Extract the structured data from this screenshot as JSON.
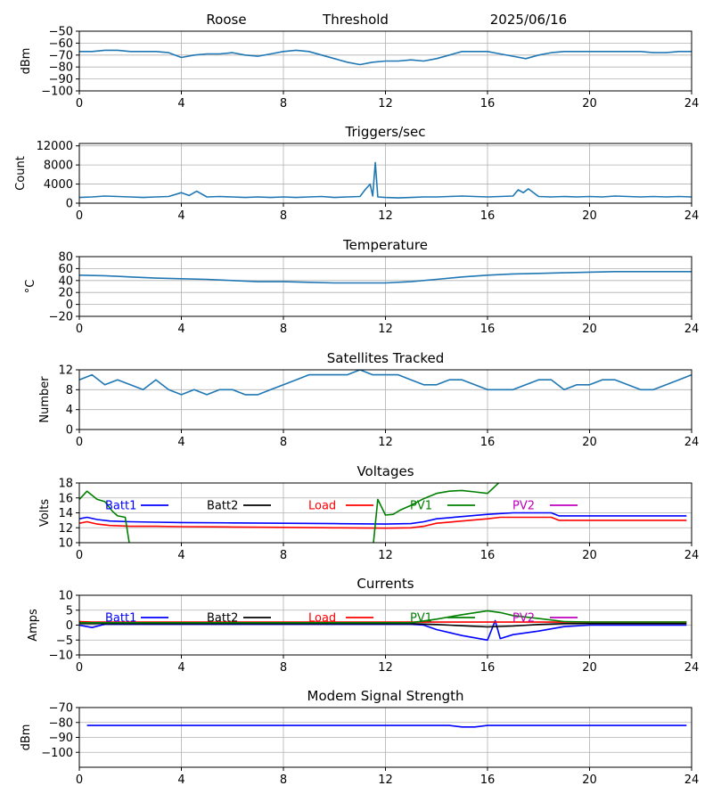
{
  "header": {
    "station": "Roose",
    "mode": "Threshold",
    "date": "2025/06/16"
  },
  "chart_data": [
    {
      "id": "signal",
      "type": "line",
      "title": "",
      "ylabel": "dBm",
      "ylim": [
        -100,
        -50
      ],
      "yticks": [
        -100,
        -90,
        -80,
        -70,
        -60,
        -50
      ],
      "xlim": [
        0,
        24
      ],
      "xticks": [
        0,
        4,
        8,
        12,
        16,
        20,
        24
      ],
      "grid": true,
      "series": [
        {
          "color": "#1f77b4",
          "x": [
            0,
            0.5,
            1,
            1.5,
            2,
            2.5,
            3,
            3.5,
            4,
            4.5,
            5,
            5.5,
            6,
            6.5,
            7,
            7.5,
            8,
            8.5,
            9,
            9.5,
            10,
            10.5,
            11,
            11.5,
            12,
            12.5,
            13,
            13.5,
            14,
            14.5,
            15,
            15.5,
            16,
            16.5,
            17,
            17.5,
            18,
            18.5,
            19,
            19.5,
            20,
            20.5,
            21,
            21.5,
            22,
            22.5,
            23,
            23.5,
            24
          ],
          "y": [
            -67,
            -67,
            -66,
            -66,
            -67,
            -67,
            -67,
            -68,
            -72,
            -70,
            -69,
            -69,
            -68,
            -70,
            -71,
            -69,
            -67,
            -66,
            -67,
            -70,
            -73,
            -76,
            -78,
            -76,
            -75,
            -75,
            -74,
            -75,
            -73,
            -70,
            -67,
            -67,
            -67,
            -69,
            -71,
            -73,
            -70,
            -68,
            -67,
            -67,
            -67,
            -67,
            -67,
            -67,
            -67,
            -68,
            -68,
            -67,
            -67
          ]
        }
      ]
    },
    {
      "id": "triggers",
      "type": "line",
      "title": "Triggers/sec",
      "ylabel": "Count",
      "ylim": [
        0,
        12500
      ],
      "yticks": [
        0,
        4000,
        8000,
        12000
      ],
      "xlim": [
        0,
        24
      ],
      "xticks": [
        0,
        4,
        8,
        12,
        16,
        20,
        24
      ],
      "grid": true,
      "series": [
        {
          "color": "#1f77b4",
          "x": [
            0,
            0.5,
            1,
            1.5,
            2,
            2.5,
            3,
            3.5,
            4,
            4.3,
            4.6,
            5,
            5.5,
            6,
            6.5,
            7,
            7.5,
            8,
            8.5,
            9,
            9.5,
            10,
            10.5,
            11,
            11.2,
            11.4,
            11.5,
            11.6,
            11.7,
            12,
            12.5,
            13,
            13.5,
            14,
            14.5,
            15,
            15.5,
            16,
            16.5,
            17,
            17.2,
            17.4,
            17.6,
            18,
            18.5,
            19,
            19.5,
            20,
            20.5,
            21,
            21.5,
            22,
            22.5,
            23,
            23.5,
            24
          ],
          "y": [
            1200,
            1300,
            1500,
            1400,
            1300,
            1200,
            1300,
            1400,
            2200,
            1600,
            2500,
            1300,
            1400,
            1300,
            1200,
            1300,
            1200,
            1300,
            1200,
            1300,
            1400,
            1200,
            1300,
            1400,
            2800,
            4000,
            1500,
            8500,
            1300,
            1200,
            1100,
            1200,
            1300,
            1300,
            1400,
            1500,
            1400,
            1300,
            1400,
            1500,
            2800,
            2200,
            3000,
            1400,
            1300,
            1400,
            1300,
            1400,
            1300,
            1500,
            1400,
            1300,
            1400,
            1300,
            1400,
            1300
          ]
        }
      ]
    },
    {
      "id": "temperature",
      "type": "line",
      "title": "Temperature",
      "ylabel": "°C",
      "ylim": [
        -20,
        80
      ],
      "yticks": [
        -20,
        0,
        20,
        40,
        60,
        80
      ],
      "xlim": [
        0,
        24
      ],
      "xticks": [
        0,
        4,
        8,
        12,
        16,
        20,
        24
      ],
      "grid": true,
      "series": [
        {
          "color": "#1f77b4",
          "x": [
            0,
            1,
            2,
            3,
            4,
            5,
            6,
            7,
            8,
            9,
            10,
            11,
            12,
            13,
            14,
            15,
            16,
            17,
            18,
            19,
            20,
            21,
            22,
            23,
            24
          ],
          "y": [
            49,
            48,
            46,
            44,
            43,
            42,
            40,
            38,
            38,
            37,
            36,
            36,
            36,
            38,
            42,
            46,
            49,
            51,
            52,
            53,
            54,
            55,
            55,
            55,
            55
          ]
        }
      ]
    },
    {
      "id": "satellites",
      "type": "line",
      "title": "Satellites Tracked",
      "ylabel": "Number",
      "ylim": [
        0,
        12
      ],
      "yticks": [
        0,
        4,
        8,
        12
      ],
      "xlim": [
        0,
        24
      ],
      "xticks": [
        0,
        4,
        8,
        12,
        16,
        20,
        24
      ],
      "grid": true,
      "series": [
        {
          "color": "#1f77b4",
          "x": [
            0,
            0.5,
            1,
            1.5,
            2,
            2.5,
            3,
            3.5,
            4,
            4.5,
            5,
            5.5,
            6,
            6.5,
            7,
            7.5,
            8,
            8.5,
            9,
            9.5,
            10,
            10.5,
            11,
            11.5,
            12,
            12.5,
            13,
            13.5,
            14,
            14.5,
            15,
            15.5,
            16,
            16.5,
            17,
            17.5,
            18,
            18.5,
            19,
            19.5,
            20,
            20.5,
            21,
            21.5,
            22,
            22.5,
            23,
            23.5,
            24
          ],
          "y": [
            10,
            11,
            9,
            10,
            9,
            8,
            10,
            8,
            7,
            8,
            7,
            8,
            8,
            7,
            7,
            8,
            9,
            10,
            11,
            11,
            11,
            11,
            12,
            11,
            11,
            11,
            10,
            9,
            9,
            10,
            10,
            9,
            8,
            8,
            8,
            9,
            10,
            10,
            8,
            9,
            9,
            10,
            10,
            9,
            8,
            8,
            9,
            10,
            11
          ]
        }
      ]
    },
    {
      "id": "voltages",
      "type": "line",
      "title": "Voltages",
      "ylabel": "Volts",
      "ylim": [
        10,
        18
      ],
      "yticks": [
        10,
        12,
        14,
        16,
        18
      ],
      "xlim": [
        0,
        24
      ],
      "xticks": [
        0,
        4,
        8,
        12,
        16,
        20,
        24
      ],
      "grid": true,
      "series": [
        {
          "name": "Batt1",
          "color": "#0000ff",
          "x": [
            0,
            0.3,
            0.7,
            1.2,
            2,
            3,
            4,
            6,
            8,
            10,
            12,
            13,
            13.5,
            14,
            15,
            16,
            16.5,
            17,
            18,
            18.5,
            18.8,
            20,
            22,
            23.8
          ],
          "y": [
            13.2,
            13.4,
            13.1,
            12.9,
            12.8,
            12.75,
            12.7,
            12.65,
            12.6,
            12.55,
            12.5,
            12.55,
            12.8,
            13.2,
            13.5,
            13.8,
            13.9,
            14,
            14,
            14,
            13.6,
            13.6,
            13.6,
            13.6
          ]
        },
        {
          "name": "Batt2",
          "color": "#000000",
          "x": [],
          "y": []
        },
        {
          "name": "Load",
          "color": "#ff0000",
          "x": [
            0,
            0.3,
            0.7,
            1.2,
            2,
            3,
            4,
            6,
            8,
            10,
            12,
            13,
            13.5,
            14,
            15,
            16,
            16.5,
            17,
            18,
            18.5,
            18.8,
            20,
            22,
            23.8
          ],
          "y": [
            12.6,
            12.8,
            12.5,
            12.3,
            12.2,
            12.2,
            12.15,
            12.1,
            12.05,
            12,
            11.95,
            12,
            12.2,
            12.6,
            12.9,
            13.2,
            13.4,
            13.4,
            13.4,
            13.4,
            13,
            13,
            13,
            13
          ]
        },
        {
          "name": "PV1",
          "color": "#008000",
          "x": [
            0,
            0.3,
            0.7,
            1,
            1.3,
            1.5,
            1.8,
            2.0,
            11.5,
            11.7,
            12,
            12.3,
            12.6,
            13,
            13.5,
            14,
            14.5,
            15,
            15.5,
            16,
            16.5
          ],
          "y": [
            15.8,
            16.9,
            15.8,
            15.5,
            14.2,
            13.6,
            13.4,
            9.0,
            9.0,
            15.8,
            13.7,
            13.8,
            14.4,
            15,
            15.9,
            16.6,
            16.9,
            17,
            16.8,
            16.6,
            18.2
          ]
        },
        {
          "name": "PV2",
          "color": "#bf00bf",
          "x": [],
          "y": []
        }
      ]
    },
    {
      "id": "currents",
      "type": "line",
      "title": "Currents",
      "ylabel": "Amps",
      "ylim": [
        -10,
        10
      ],
      "yticks": [
        -10,
        -5,
        0,
        5,
        10
      ],
      "xlim": [
        0,
        24
      ],
      "xticks": [
        0,
        4,
        8,
        12,
        16,
        20,
        24
      ],
      "grid": true,
      "series": [
        {
          "name": "Batt1",
          "color": "#0000ff",
          "x": [
            0,
            0.5,
            1,
            2,
            4,
            8,
            12,
            13,
            13.5,
            14,
            15,
            16,
            16.3,
            16.5,
            17,
            18,
            19,
            20,
            21,
            22,
            23.8
          ],
          "y": [
            0,
            -0.8,
            0.3,
            0.3,
            0.3,
            0.3,
            0.3,
            0.3,
            0,
            -1.5,
            -3.5,
            -5,
            1.5,
            -4.5,
            -3.2,
            -2,
            -0.5,
            0,
            0,
            0,
            0
          ]
        },
        {
          "name": "Batt2",
          "color": "#000000",
          "x": [
            0,
            4,
            8,
            12,
            13,
            14,
            15,
            16,
            17,
            18,
            19,
            20,
            23.8
          ],
          "y": [
            0.5,
            0.5,
            0.5,
            0.5,
            0.5,
            0.2,
            -0.2,
            -0.6,
            -0.3,
            0.2,
            0.5,
            0.5,
            0.5
          ]
        },
        {
          "name": "Load",
          "color": "#ff0000",
          "x": [
            0,
            0.5,
            4,
            8,
            12,
            16,
            20,
            23.8
          ],
          "y": [
            1.2,
            1.0,
            1.0,
            1.0,
            1.0,
            1.0,
            1.0,
            1.0
          ]
        },
        {
          "name": "PV1",
          "color": "#008000",
          "x": [
            0,
            4,
            8,
            12,
            13,
            14,
            15,
            16,
            16.5,
            17,
            18,
            19,
            20,
            23.8
          ],
          "y": [
            0.8,
            0.8,
            0.8,
            0.8,
            0.8,
            2,
            3.5,
            4.8,
            4.2,
            3.2,
            2.2,
            1.2,
            1,
            1
          ]
        },
        {
          "name": "PV2",
          "color": "#bf00bf",
          "x": [],
          "y": []
        }
      ]
    },
    {
      "id": "modem",
      "type": "line",
      "title": "Modem Signal Strength",
      "ylabel": "dBm",
      "ylim": [
        -110,
        -70
      ],
      "yticks": [
        -100,
        -90,
        -80,
        -70
      ],
      "xlim": [
        0,
        24
      ],
      "xticks": [
        0,
        4,
        8,
        12,
        16,
        20,
        24
      ],
      "grid": true,
      "series": [
        {
          "color": "#0000ff",
          "x": [
            0.3,
            4,
            8,
            12,
            14.5,
            15,
            15.5,
            16,
            20,
            23.8
          ],
          "y": [
            -82,
            -82,
            -82,
            -82,
            -82,
            -83,
            -83,
            -82,
            -82,
            -82
          ]
        }
      ]
    }
  ]
}
